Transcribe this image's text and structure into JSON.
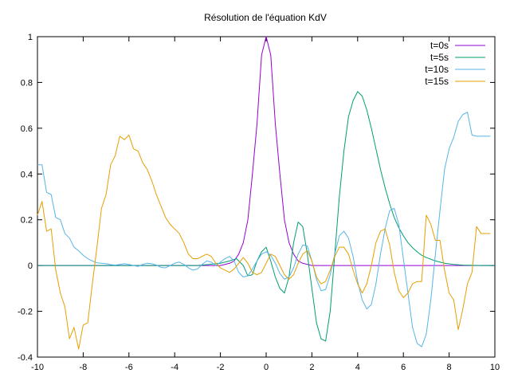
{
  "chart_data": {
    "type": "line",
    "title": "Résolution de l'équation KdV",
    "xlabel": "",
    "ylabel": "",
    "xlim": [
      -10,
      10
    ],
    "ylim": [
      -0.4,
      1
    ],
    "xticks": [
      -10,
      -8,
      -6,
      -4,
      -2,
      0,
      2,
      4,
      6,
      8,
      10
    ],
    "yticks": [
      -0.4,
      -0.2,
      0,
      0.2,
      0.4,
      0.6,
      0.8,
      1
    ],
    "grid": false,
    "legend_position": "top-right",
    "series": [
      {
        "name": "t=0s",
        "color": "#9400d3",
        "x": [
          -10,
          -2,
          -1.8,
          -1.6,
          -1.4,
          -1.2,
          -1.0,
          -0.8,
          -0.6,
          -0.4,
          -0.2,
          0.0,
          0.2,
          0.4,
          0.6,
          0.8,
          1.0,
          1.2,
          1.4,
          1.6,
          1.8,
          2.0,
          10
        ],
        "y": [
          0,
          0.0,
          0.005,
          0.01,
          0.02,
          0.05,
          0.1,
          0.2,
          0.4,
          0.62,
          0.92,
          1.0,
          0.92,
          0.62,
          0.4,
          0.2,
          0.1,
          0.05,
          0.02,
          0.01,
          0.005,
          0.0,
          0
        ]
      },
      {
        "name": "t=5s",
        "color": "#009e73",
        "x": [
          -10,
          -3,
          -2.5,
          -2,
          -1.6,
          -1.3,
          -1.0,
          -0.8,
          -0.6,
          -0.4,
          -0.2,
          0.0,
          0.2,
          0.4,
          0.6,
          0.8,
          1.0,
          1.2,
          1.4,
          1.6,
          1.8,
          2.0,
          2.2,
          2.4,
          2.6,
          2.8,
          3.0,
          3.2,
          3.4,
          3.6,
          3.8,
          4.0,
          4.2,
          4.4,
          4.6,
          4.8,
          5.0,
          5.2,
          5.4,
          5.6,
          5.8,
          6.0,
          6.2,
          6.4,
          6.6,
          6.8,
          7.0,
          7.4,
          7.8,
          8.2,
          8.6,
          9.0,
          9.5,
          10
        ],
        "y": [
          0,
          0,
          0.005,
          0.01,
          0.02,
          0.03,
          0.0,
          -0.045,
          -0.04,
          0.02,
          0.06,
          0.08,
          0.02,
          -0.05,
          -0.1,
          -0.12,
          -0.05,
          0.1,
          0.19,
          0.17,
          0.05,
          -0.1,
          -0.25,
          -0.32,
          -0.33,
          -0.2,
          0.05,
          0.3,
          0.5,
          0.65,
          0.72,
          0.76,
          0.74,
          0.68,
          0.6,
          0.51,
          0.42,
          0.34,
          0.27,
          0.21,
          0.165,
          0.13,
          0.1,
          0.078,
          0.06,
          0.045,
          0.035,
          0.02,
          0.01,
          0.005,
          0.002,
          0.001,
          0.0,
          0
        ]
      },
      {
        "name": "t=10s",
        "color": "#56b4e9",
        "x": [
          -10,
          -9.8,
          -9.6,
          -9.4,
          -9.2,
          -9.0,
          -8.8,
          -8.6,
          -8.4,
          -8.2,
          -8.0,
          -7.8,
          -7.6,
          -7.4,
          -7.2,
          -7.0,
          -6.8,
          -6.6,
          -6.4,
          -6.2,
          -6.0,
          -5.8,
          -5.6,
          -5.4,
          -5.2,
          -5.0,
          -4.8,
          -4.6,
          -4.4,
          -4.2,
          -4.0,
          -3.8,
          -3.6,
          -3.4,
          -3.2,
          -3.0,
          -2.8,
          -2.6,
          -2.4,
          -2.2,
          -2.0,
          -1.8,
          -1.6,
          -1.4,
          -1.2,
          -1.0,
          -0.8,
          -0.6,
          -0.4,
          -0.2,
          0.0,
          0.2,
          0.4,
          0.6,
          0.8,
          1.0,
          1.2,
          1.4,
          1.6,
          1.8,
          2.0,
          2.2,
          2.4,
          2.6,
          2.8,
          3.0,
          3.2,
          3.4,
          3.6,
          3.8,
          4.0,
          4.2,
          4.4,
          4.6,
          4.8,
          5.0,
          5.2,
          5.4,
          5.6,
          5.8,
          6.0,
          6.2,
          6.4,
          6.6,
          6.8,
          7.0,
          7.2,
          7.4,
          7.6,
          7.8,
          8.0,
          8.2,
          8.4,
          8.6,
          8.8,
          9.0,
          9.2,
          9.4,
          9.6,
          9.8
        ],
        "y": [
          0.44,
          0.44,
          0.32,
          0.31,
          0.21,
          0.2,
          0.14,
          0.12,
          0.08,
          0.065,
          0.045,
          0.03,
          0.02,
          0.012,
          0.01,
          0.008,
          0.004,
          0.002,
          0.005,
          0.008,
          0.005,
          0.0,
          -0.004,
          0.005,
          0.01,
          0.008,
          0.002,
          -0.008,
          -0.01,
          0.0,
          0.01,
          0.015,
          0.005,
          -0.01,
          -0.02,
          -0.015,
          0.005,
          0.02,
          0.015,
          0.0,
          0.015,
          0.03,
          0.04,
          0.02,
          -0.03,
          -0.05,
          -0.045,
          -0.015,
          0.02,
          0.05,
          0.06,
          0.045,
          0.01,
          -0.035,
          -0.06,
          -0.05,
          -0.01,
          0.05,
          0.09,
          0.085,
          0.02,
          -0.06,
          -0.11,
          -0.105,
          -0.04,
          0.05,
          0.13,
          0.15,
          0.12,
          0.04,
          -0.07,
          -0.15,
          -0.19,
          -0.17,
          -0.08,
          0.05,
          0.16,
          0.24,
          0.25,
          0.18,
          0.03,
          -0.12,
          -0.27,
          -0.34,
          -0.355,
          -0.3,
          -0.15,
          0.05,
          0.24,
          0.42,
          0.51,
          0.56,
          0.63,
          0.66,
          0.67,
          0.57,
          0.565,
          0.565,
          0.565,
          0.565
        ]
      },
      {
        "name": "t=15s",
        "color": "#e69f00",
        "x": [
          -10,
          -9.8,
          -9.6,
          -9.4,
          -9.2,
          -9.0,
          -8.8,
          -8.6,
          -8.4,
          -8.2,
          -8.0,
          -7.8,
          -7.6,
          -7.4,
          -7.2,
          -7.0,
          -6.8,
          -6.6,
          -6.4,
          -6.2,
          -6.0,
          -5.8,
          -5.6,
          -5.4,
          -5.2,
          -5.0,
          -4.8,
          -4.6,
          -4.4,
          -4.2,
          -4.0,
          -3.8,
          -3.6,
          -3.4,
          -3.2,
          -3.0,
          -2.8,
          -2.6,
          -2.4,
          -2.2,
          -2.0,
          -1.8,
          -1.6,
          -1.4,
          -1.2,
          -1.0,
          -0.8,
          -0.6,
          -0.4,
          -0.2,
          0.0,
          0.2,
          0.4,
          0.6,
          0.8,
          1.0,
          1.2,
          1.4,
          1.6,
          1.8,
          2.0,
          2.2,
          2.4,
          2.6,
          2.8,
          3.0,
          3.2,
          3.4,
          3.6,
          3.8,
          4.0,
          4.2,
          4.4,
          4.6,
          4.8,
          5.0,
          5.2,
          5.4,
          5.6,
          5.8,
          6.0,
          6.2,
          6.4,
          6.6,
          6.8,
          7.0,
          7.2,
          7.4,
          7.6,
          7.8,
          8.0,
          8.2,
          8.4,
          8.6,
          8.8,
          9.0,
          9.2,
          9.4,
          9.6,
          9.8
        ],
        "y": [
          0.22,
          0.28,
          0.15,
          0.16,
          -0.02,
          -0.12,
          -0.18,
          -0.32,
          -0.27,
          -0.365,
          -0.26,
          -0.25,
          -0.08,
          0.08,
          0.25,
          0.31,
          0.44,
          0.48,
          0.565,
          0.55,
          0.57,
          0.51,
          0.5,
          0.45,
          0.42,
          0.37,
          0.31,
          0.26,
          0.21,
          0.18,
          0.16,
          0.14,
          0.1,
          0.05,
          0.03,
          0.03,
          0.04,
          0.05,
          0.04,
          0.01,
          -0.01,
          -0.02,
          -0.03,
          -0.015,
          0.01,
          0.035,
          0.01,
          -0.03,
          -0.04,
          -0.03,
          0.01,
          0.05,
          0.04,
          0.0,
          -0.04,
          -0.06,
          -0.04,
          0.01,
          0.05,
          0.065,
          0.02,
          -0.05,
          -0.08,
          -0.07,
          -0.02,
          0.04,
          0.08,
          0.08,
          0.05,
          -0.02,
          -0.08,
          -0.12,
          -0.08,
          0.0,
          0.1,
          0.15,
          0.16,
          0.09,
          -0.03,
          -0.11,
          -0.14,
          -0.12,
          -0.08,
          -0.07,
          -0.07,
          0.22,
          0.18,
          0.11,
          0.11,
          -0.02,
          -0.12,
          -0.15,
          -0.28,
          -0.19,
          -0.08,
          -0.03,
          0.17,
          0.14,
          0.14,
          0.14
        ]
      }
    ]
  }
}
